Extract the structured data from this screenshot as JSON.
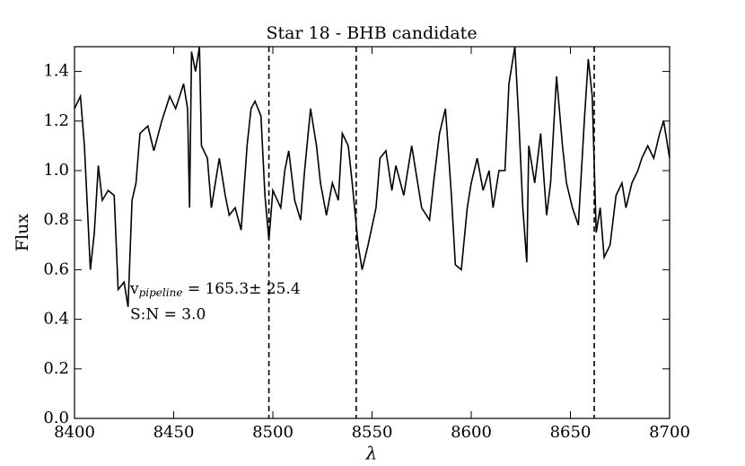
{
  "chart_data": {
    "type": "line",
    "title": "Star 18 - BHB candidate",
    "xlabel": "λ",
    "ylabel": "Flux",
    "xlim": [
      8400,
      8700
    ],
    "ylim": [
      0,
      1.5
    ],
    "xticks": [
      8400,
      8450,
      8500,
      8550,
      8600,
      8650,
      8700
    ],
    "yticks": [
      {
        "value": 0,
        "label": "0.0"
      },
      0.2,
      0.4,
      0.6,
      0.8,
      {
        "value": 1,
        "label": "1.0"
      },
      1.2,
      1.4
    ],
    "vlines": [
      8498,
      8542,
      8662
    ],
    "annotations": [
      {
        "text": "v",
        "subscript": "pipeline",
        "suffix": " = 165.3± 25.4"
      },
      {
        "text": "S:N = 3.0"
      }
    ],
    "x": [
      8400,
      8403,
      8405,
      8408,
      8410,
      8412,
      8414,
      8417,
      8420,
      8422,
      8425,
      8427,
      8429,
      8431,
      8433,
      8437,
      8440,
      8444,
      8448,
      8451,
      8455,
      8457,
      8458,
      8459,
      8461,
      8463,
      8464,
      8467,
      8469,
      8471,
      8473,
      8476,
      8478,
      8481,
      8484,
      8487,
      8489,
      8491,
      8494,
      8496,
      8498,
      8500,
      8504,
      8506,
      8508,
      8511,
      8514,
      8516,
      8519,
      8522,
      8524,
      8527,
      8530,
      8533,
      8535,
      8538,
      8540,
      8543,
      8545,
      8548,
      8552,
      8554,
      8557,
      8560,
      8562,
      8566,
      8570,
      8572,
      8575,
      8579,
      8581,
      8584,
      8587,
      8590,
      8592,
      8595,
      8598,
      8600,
      8603,
      8606,
      8609,
      8611,
      8614,
      8617,
      8619,
      8622,
      8624,
      8626,
      8628,
      8629,
      8632,
      8635,
      8638,
      8640,
      8643,
      8646,
      8648,
      8651,
      8654,
      8657,
      8659,
      8661,
      8663,
      8665,
      8667,
      8670,
      8673,
      8676,
      8678,
      8681,
      8684,
      8686,
      8689,
      8692,
      8695,
      8697,
      8700
    ],
    "series": [
      {
        "color": "#000000",
        "values": [
          1.25,
          1.3,
          1.1,
          0.6,
          0.75,
          1.02,
          0.88,
          0.92,
          0.9,
          0.52,
          0.55,
          0.45,
          0.88,
          0.95,
          1.15,
          1.18,
          1.08,
          1.2,
          1.3,
          1.25,
          1.35,
          1.25,
          0.85,
          1.48,
          1.4,
          1.5,
          1.1,
          1.05,
          0.85,
          0.95,
          1.05,
          0.9,
          0.82,
          0.85,
          0.76,
          1.1,
          1.25,
          1.28,
          1.22,
          0.9,
          0.72,
          0.92,
          0.85,
          1.0,
          1.08,
          0.88,
          0.8,
          1.0,
          1.25,
          1.1,
          0.95,
          0.82,
          0.95,
          0.88,
          1.15,
          1.1,
          0.95,
          0.7,
          0.6,
          0.7,
          0.85,
          1.05,
          1.08,
          0.92,
          1.02,
          0.9,
          1.1,
          1.0,
          0.85,
          0.8,
          0.95,
          1.15,
          1.25,
          0.9,
          0.62,
          0.6,
          0.85,
          0.95,
          1.05,
          0.92,
          1.0,
          0.85,
          1.0,
          1.0,
          1.35,
          1.5,
          1.2,
          0.85,
          0.63,
          1.1,
          0.95,
          1.15,
          0.82,
          0.95,
          1.38,
          1.1,
          0.95,
          0.85,
          0.78,
          1.2,
          1.45,
          1.3,
          0.75,
          0.85,
          0.65,
          0.7,
          0.9,
          0.95,
          0.85,
          0.95,
          1.0,
          1.05,
          1.1,
          1.05,
          1.15,
          1.2,
          1.05
        ]
      }
    ]
  }
}
